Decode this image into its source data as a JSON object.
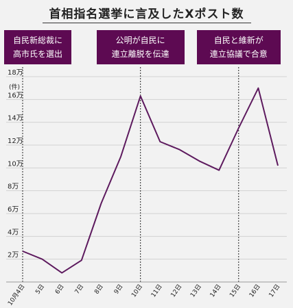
{
  "chart_data": {
    "type": "line",
    "title": "首相指名選挙に言及したXポスト数",
    "ylabel": "(件)",
    "ylim": [
      0,
      180000
    ],
    "yticks": [
      20000,
      40000,
      60000,
      80000,
      100000,
      120000,
      140000,
      160000,
      180000
    ],
    "ytick_labels": [
      "2万",
      "4万",
      "6万",
      "8万",
      "10万",
      "12万",
      "14万",
      "16万",
      "18万"
    ],
    "categories": [
      "10月4日",
      "5日",
      "6日",
      "7日",
      "8日",
      "9日",
      "10日",
      "11日",
      "12日",
      "13日",
      "14日",
      "15日",
      "16日",
      "17日"
    ],
    "values": [
      27000,
      20000,
      8000,
      19000,
      69000,
      110000,
      163000,
      123000,
      116000,
      106000,
      98000,
      135000,
      170000,
      102000
    ],
    "color": "#5d1a5e",
    "annotations": [
      {
        "category": "10月4日",
        "lines": [
          "自民新総裁に",
          "高市氏を選出"
        ]
      },
      {
        "category": "10日",
        "lines": [
          "公明が自民に",
          "連立離脱を伝達"
        ]
      },
      {
        "category": "15日",
        "lines": [
          "自民と維新が",
          "連立協議で合意"
        ]
      }
    ]
  }
}
